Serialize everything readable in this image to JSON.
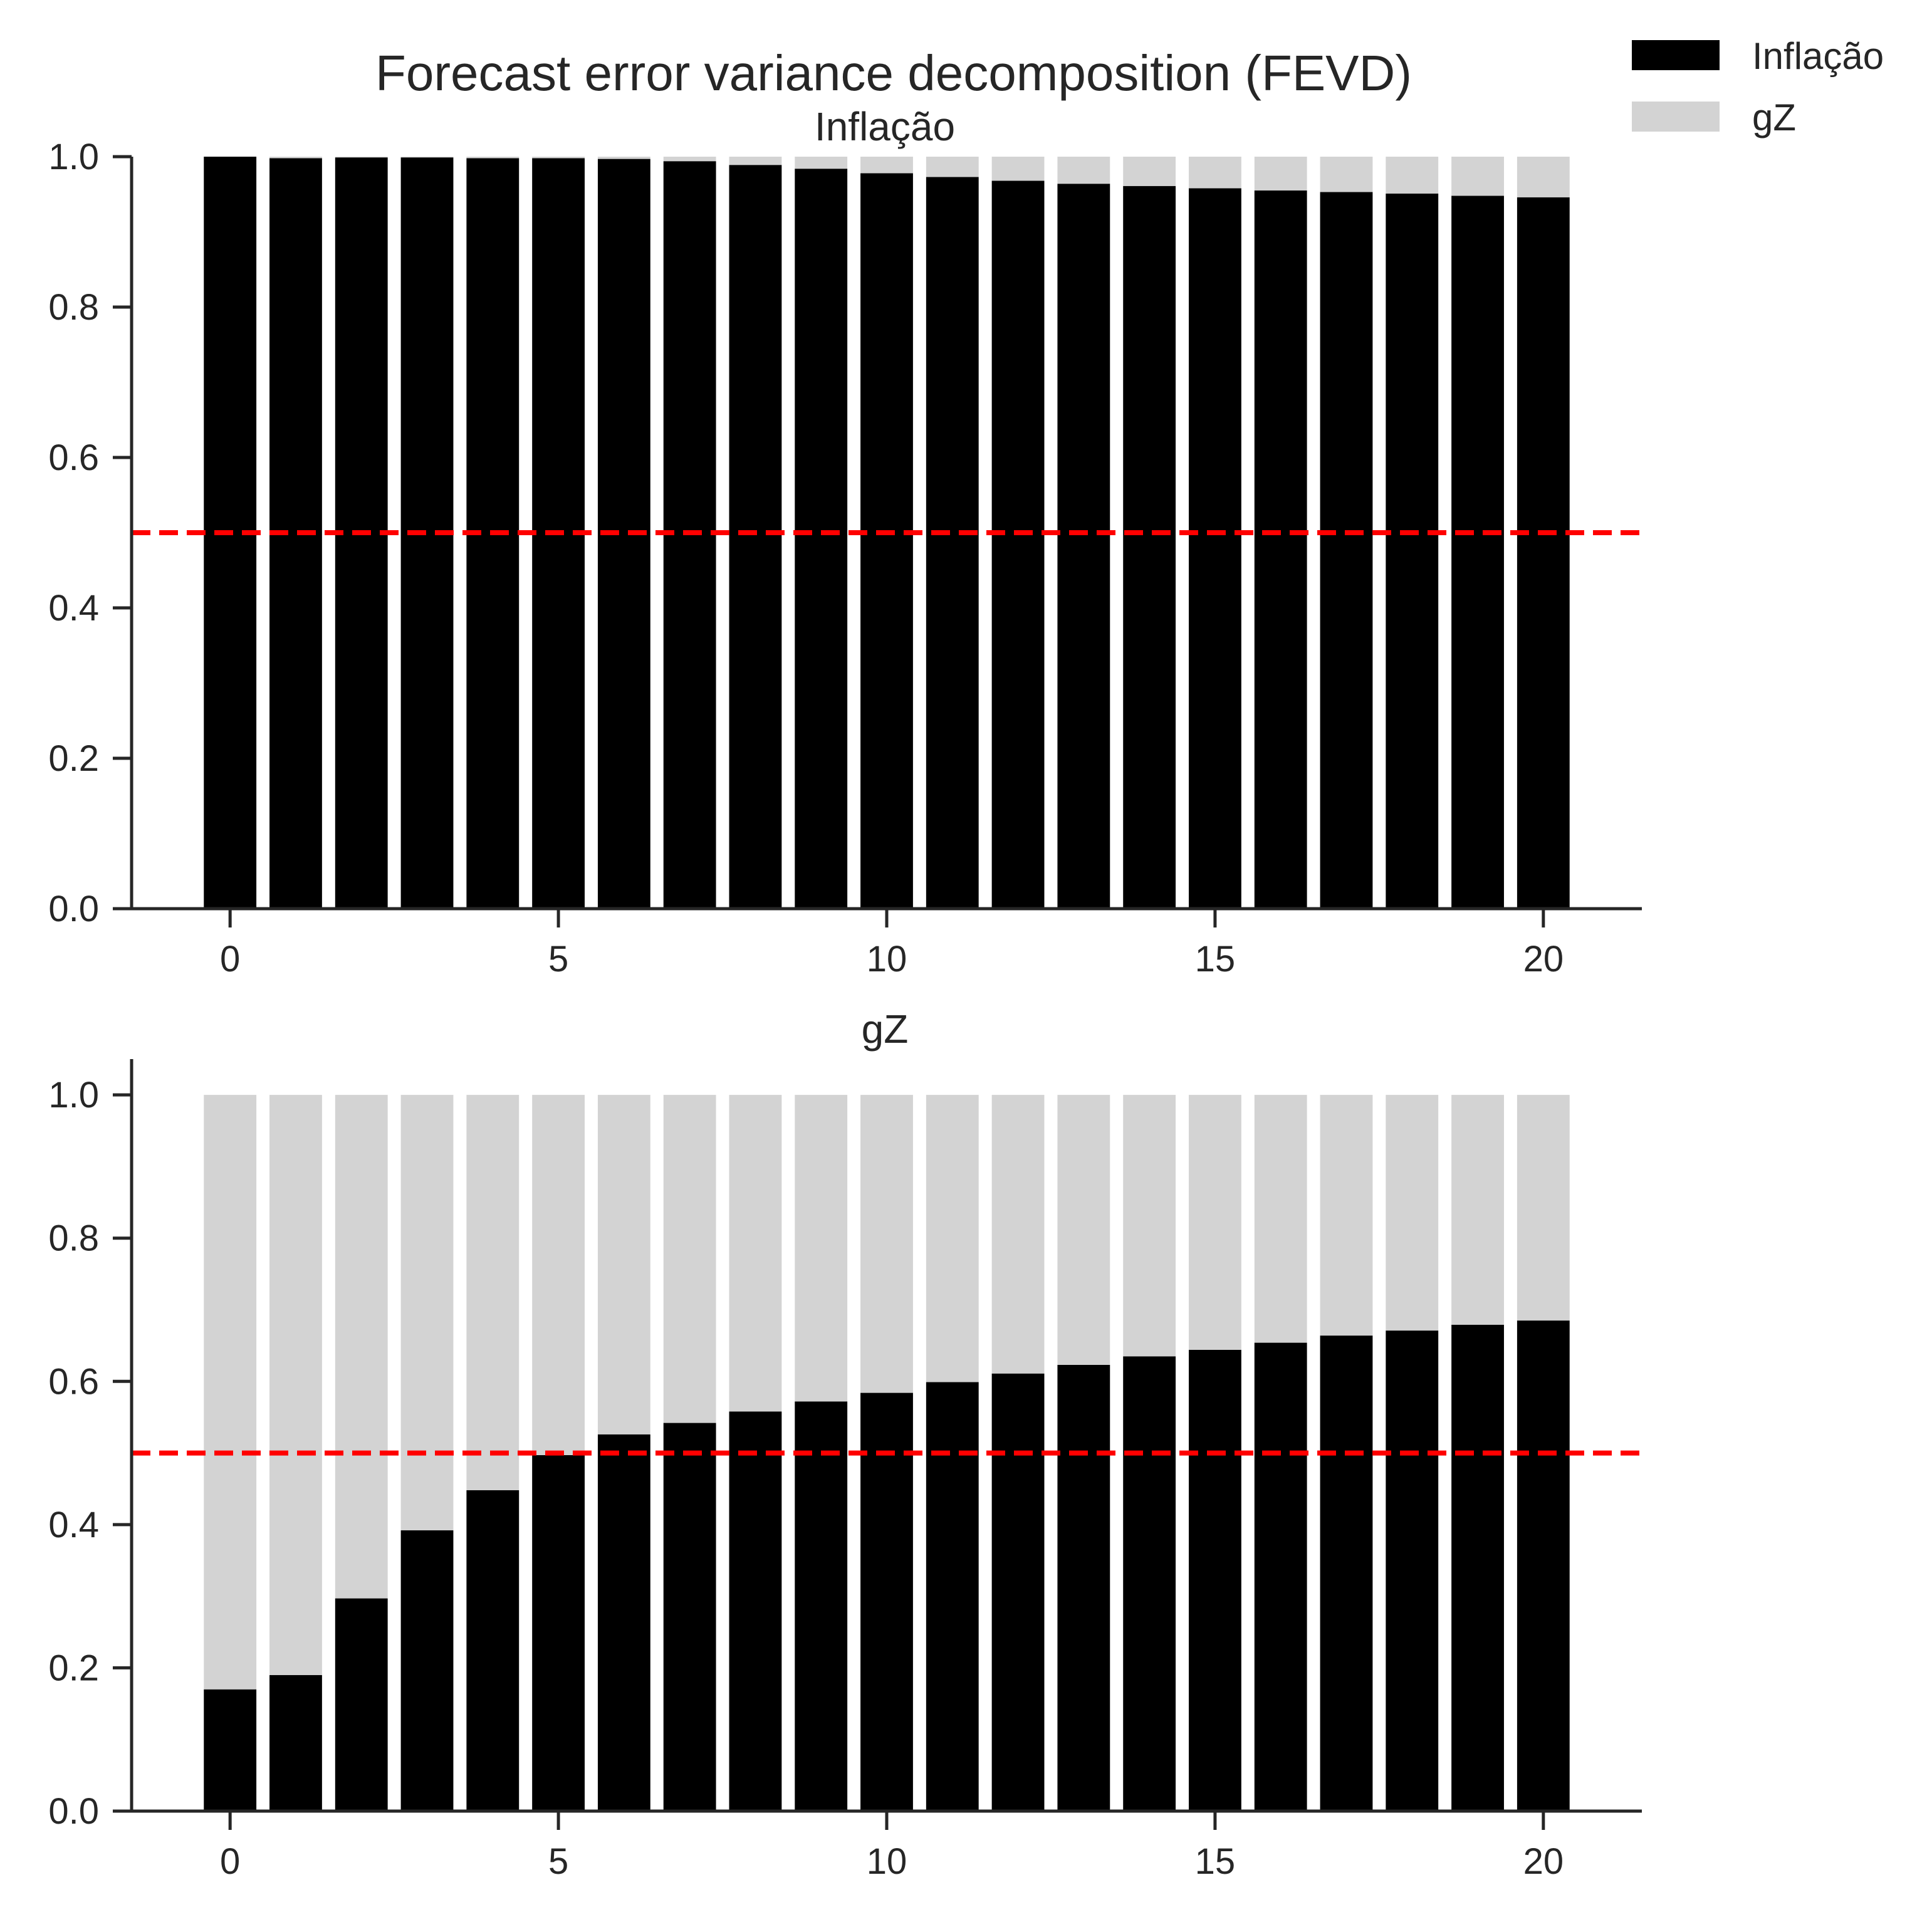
{
  "title": "Forecast error variance decomposition (FEVD)",
  "legend": {
    "placement": "top-right",
    "items": [
      {
        "label": "Inflação",
        "color": "#000000"
      },
      {
        "label": "gZ",
        "color": "#d3d3d3"
      }
    ]
  },
  "colors": {
    "shock_inflacao": "#000000",
    "shock_gz": "#d3d3d3",
    "reference_line": "#ff0000"
  },
  "chart_data": [
    {
      "type": "bar",
      "stacked": true,
      "title": "Inflação",
      "x": [
        0,
        1,
        2,
        3,
        4,
        5,
        6,
        7,
        8,
        9,
        10,
        11,
        12,
        13,
        14,
        15,
        16,
        17,
        18,
        19,
        20
      ],
      "series": [
        {
          "name": "Inflação",
          "color": "#000000",
          "values": [
            1.0,
            0.998,
            0.999,
            0.999,
            0.998,
            0.998,
            0.997,
            0.994,
            0.989,
            0.984,
            0.978,
            0.973,
            0.968,
            0.964,
            0.961,
            0.958,
            0.955,
            0.953,
            0.951,
            0.948,
            0.946
          ]
        },
        {
          "name": "gZ",
          "color": "#d3d3d3",
          "values": [
            0.0,
            0.002,
            0.001,
            0.001,
            0.002,
            0.002,
            0.003,
            0.006,
            0.011,
            0.016,
            0.022,
            0.027,
            0.032,
            0.036,
            0.039,
            0.042,
            0.045,
            0.047,
            0.049,
            0.052,
            0.054
          ]
        }
      ],
      "reference_line": {
        "y": 0.5,
        "color": "#ff0000",
        "style": "dashed"
      },
      "xticks": [
        0,
        5,
        10,
        15,
        20
      ],
      "yticks": [
        0.0,
        0.2,
        0.4,
        0.6,
        0.8,
        1.0
      ],
      "xlim": [
        -1.5,
        21.5
      ],
      "ylim": [
        0,
        1.0
      ],
      "grid": false
    },
    {
      "type": "bar",
      "stacked": true,
      "title": "gZ",
      "x": [
        0,
        1,
        2,
        3,
        4,
        5,
        6,
        7,
        8,
        9,
        10,
        11,
        12,
        13,
        14,
        15,
        16,
        17,
        18,
        19,
        20
      ],
      "series": [
        {
          "name": "Inflação",
          "color": "#000000",
          "values": [
            0.17,
            0.19,
            0.297,
            0.392,
            0.448,
            0.497,
            0.526,
            0.542,
            0.558,
            0.572,
            0.584,
            0.599,
            0.611,
            0.623,
            0.635,
            0.644,
            0.654,
            0.664,
            0.671,
            0.679,
            0.685
          ]
        },
        {
          "name": "gZ",
          "color": "#d3d3d3",
          "values": [
            0.83,
            0.81,
            0.703,
            0.608,
            0.552,
            0.503,
            0.474,
            0.458,
            0.442,
            0.428,
            0.416,
            0.401,
            0.389,
            0.377,
            0.365,
            0.356,
            0.346,
            0.336,
            0.329,
            0.321,
            0.315
          ]
        }
      ],
      "reference_line": {
        "y": 0.5,
        "color": "#ff0000",
        "style": "dashed"
      },
      "xticks": [
        0,
        5,
        10,
        15,
        20
      ],
      "yticks": [
        0.0,
        0.2,
        0.4,
        0.6,
        0.8,
        1.0
      ],
      "xlim": [
        -1.5,
        21.5
      ],
      "ylim": [
        0,
        1.05
      ],
      "grid": false
    }
  ]
}
